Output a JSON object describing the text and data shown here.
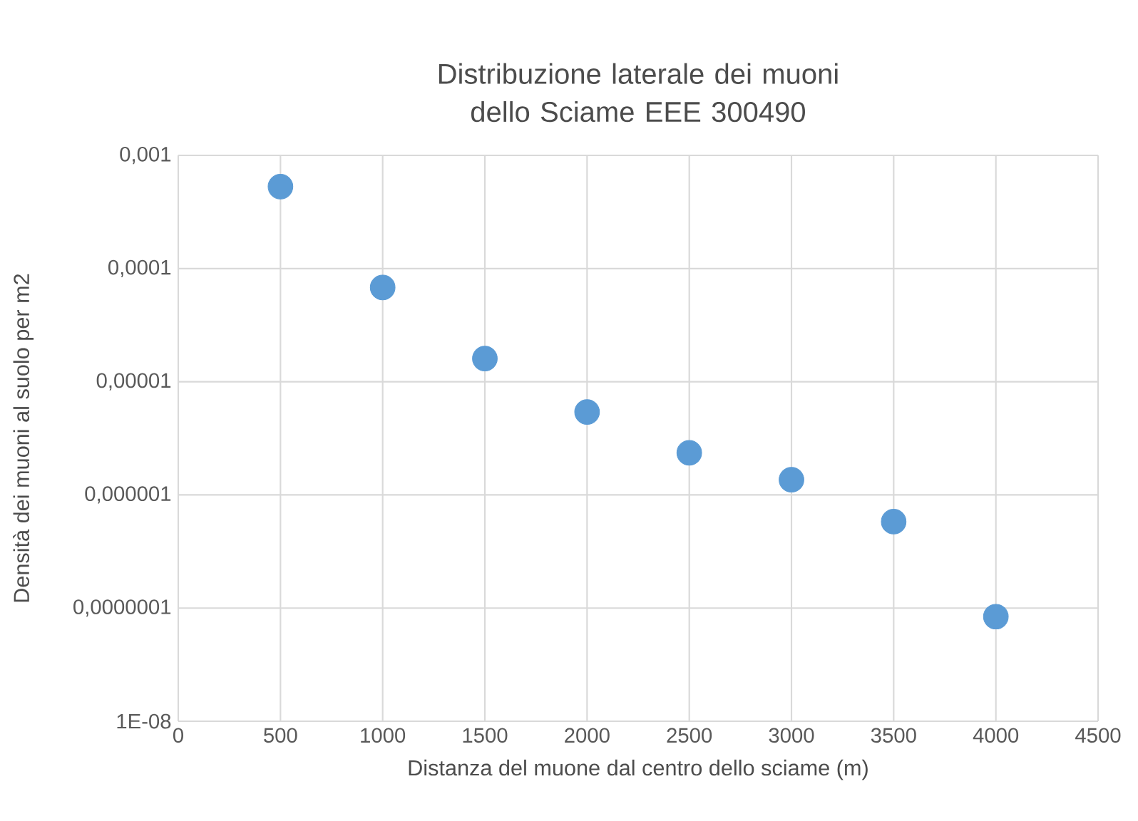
{
  "chart_data": {
    "type": "scatter",
    "title": "Distribuzione laterale dei muoni dello Sciame EEE 300490",
    "xlabel": "Distanza del muone dal centro dello sciame (m)",
    "ylabel": "Densità dei muoni al suolo per m2",
    "x": [
      500,
      1000,
      1500,
      2000,
      2500,
      3000,
      3500,
      4000
    ],
    "series": [
      {
        "color": "#5b9bd5",
        "values": [
          0.00053,
          6.8e-05,
          1.6e-05,
          5.4e-06,
          2.35e-06,
          1.36e-06,
          5.8e-07,
          8.4e-08
        ]
      }
    ],
    "log": "y",
    "grid": true,
    "xlim": [
      0,
      4500
    ],
    "xticks": [
      0,
      500,
      1000,
      1500,
      2000,
      2500,
      3000,
      3500,
      4000,
      4500
    ],
    "ylim": [
      1e-08,
      0.001
    ],
    "yticks": [
      {
        "value": 1e-08,
        "label": "1E-08"
      },
      {
        "value": 1e-07,
        "label": "0,0000001"
      },
      {
        "value": 1e-06,
        "label": "0,000001"
      },
      {
        "value": 1e-05,
        "label": "0,00001"
      },
      {
        "value": 0.0001,
        "label": "0,0001"
      },
      {
        "value": 0.001,
        "label": "0,001"
      }
    ]
  }
}
